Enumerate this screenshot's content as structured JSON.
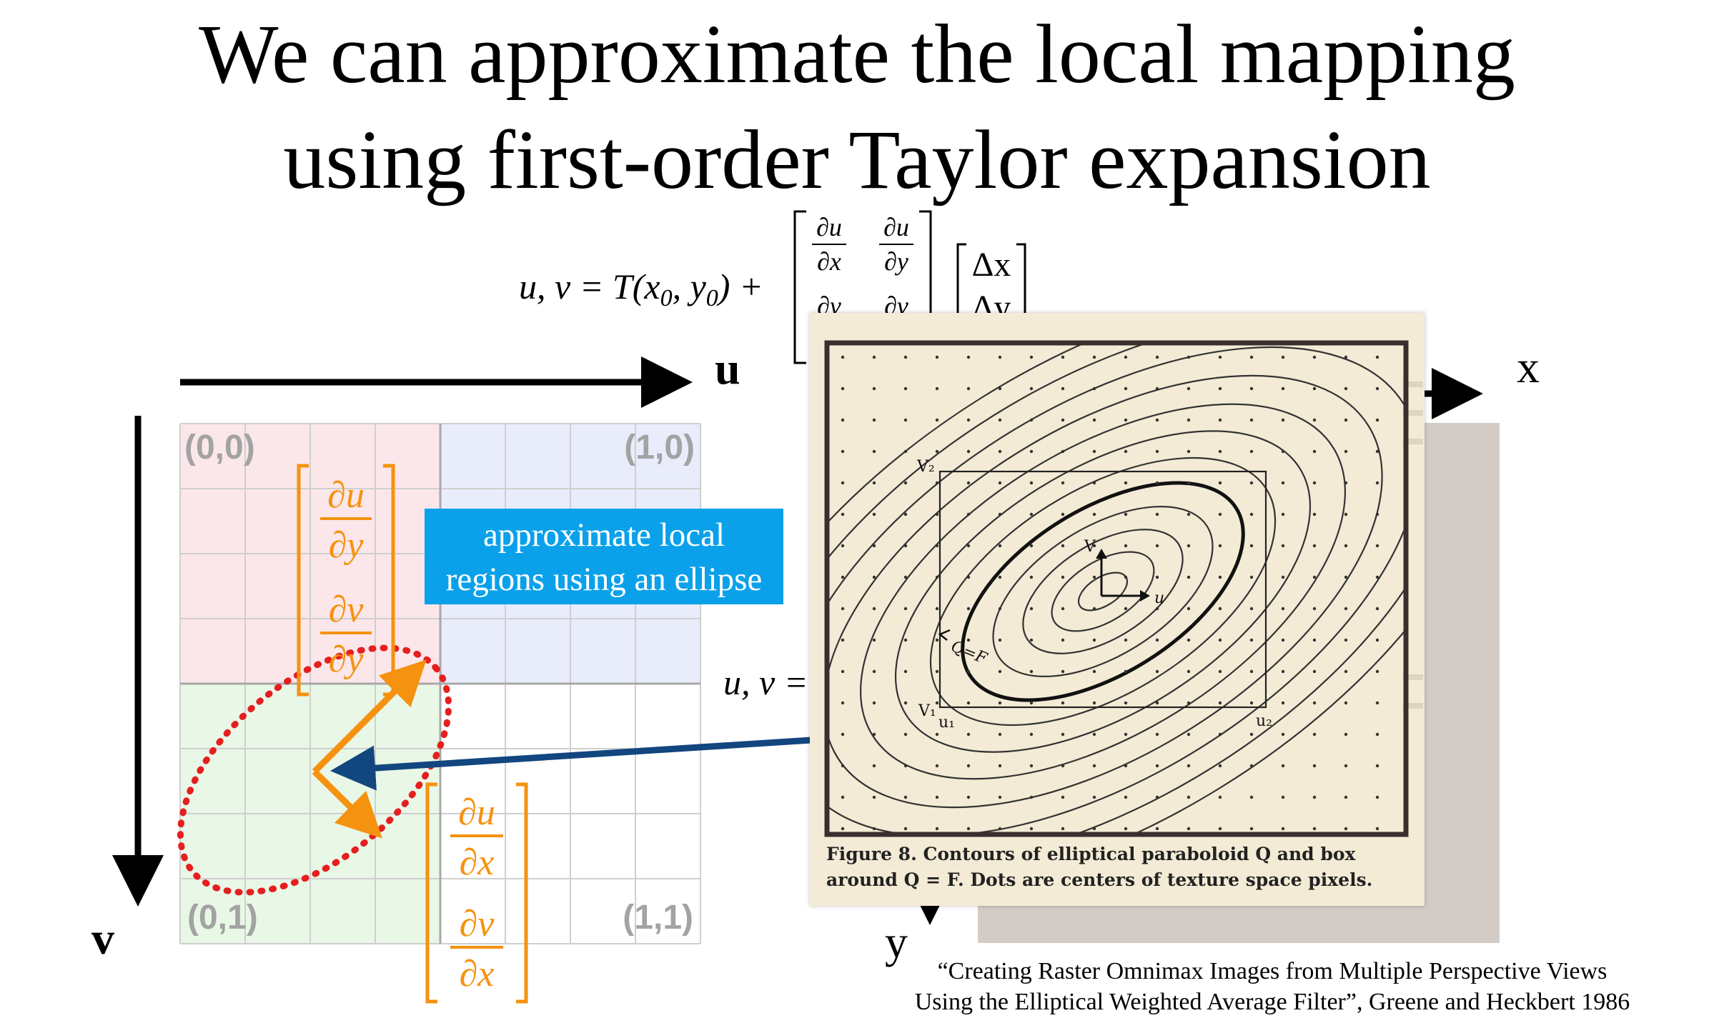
{
  "slide": {
    "title_line1": "We can approximate the local mapping",
    "title_line2": "using first-order Taylor expansion"
  },
  "equation": {
    "lhs": "u, v = T(x",
    "sub0": "0",
    "mid": ", y",
    "sub1": "0",
    "rhs": ") +",
    "du": "∂u",
    "dv": "∂v",
    "dx": "∂x",
    "dy": "∂y",
    "delta_x": "Δx",
    "delta_y": "Δy"
  },
  "equation2": {
    "lhs": "u, v ="
  },
  "uv_space": {
    "u_axis_label": "u",
    "v_axis_label": "v",
    "corners": [
      "(0,0)",
      "(1,0)",
      "(0,1)",
      "(1,1)"
    ],
    "quadrant_colors": [
      "#fbe7ea",
      "#e9ecfb",
      "#e9f7e7",
      "#ffffff"
    ]
  },
  "xy_space": {
    "x_axis_label": "x",
    "y_axis_label": "y"
  },
  "jacobian_col_y": {
    "top_num": "∂u",
    "top_den": "∂y",
    "bot_num": "∂v",
    "bot_den": "∂y"
  },
  "jacobian_col_x": {
    "top_num": "∂u",
    "top_den": "∂x",
    "bot_num": "∂v",
    "bot_den": "∂x"
  },
  "callout": {
    "line1": "approximate local",
    "line2": "regions using an ellipse"
  },
  "figure": {
    "labels": {
      "v2": "V₂",
      "v": "V",
      "u": "u",
      "qf": "Q=F",
      "v1": "V₁",
      "u1": "u₁",
      "u2": "u₂"
    },
    "caption_line1": "Figure 8. Contours of elliptical paraboloid Q and box",
    "caption_line2": "around Q = F. Dots are centers of texture space pixels."
  },
  "citation": {
    "line1": "“Creating Raster Omnimax Images from Multiple Perspective Views",
    "line2": "Using the Elliptical Weighted Average Filter”, Greene and Heckbert 1986"
  },
  "colors": {
    "orange": "#f5920f",
    "blue_arrow": "#12467e",
    "callout_bg": "#0aa1ea",
    "ellipse_dots": "#e51f1f",
    "paper_bg": "#f4ebd6"
  }
}
